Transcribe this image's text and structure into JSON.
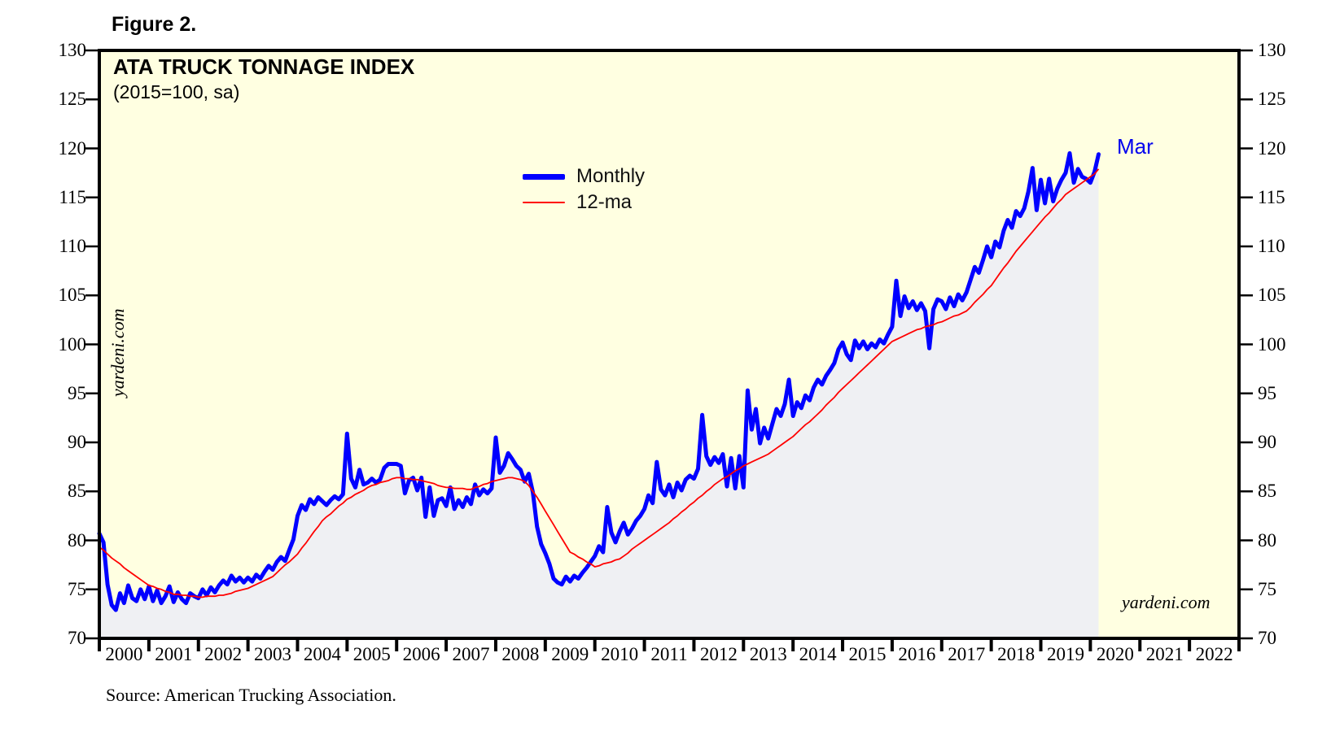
{
  "figure_label": "Figure 2.",
  "title": "ATA TRUCK TONNAGE INDEX",
  "subtitle": "(2015=100, sa)",
  "source_note": "Source: American Trucking Association.",
  "watermark_left": "yardeni.com",
  "watermark_bottom": "yardeni.com",
  "end_label": "Mar",
  "colors": {
    "plot_bg": "#FFFFE1",
    "area_fill": "#EFF0F3",
    "monthly_line": "#0000FF",
    "ma_line": "#FF0000",
    "axis": "#000000",
    "end_label": "#0000EE"
  },
  "chart_data": {
    "type": "line",
    "title": "ATA TRUCK TONNAGE INDEX",
    "subtitle": "(2015=100, sa)",
    "grid": false,
    "legend_position": "top-center",
    "ylim": [
      70,
      130
    ],
    "yticks": [
      130,
      125,
      120,
      115,
      110,
      105,
      100,
      95,
      90,
      85,
      80,
      75,
      70
    ],
    "x_start": {
      "year": 2000,
      "month": 1
    },
    "x_end": {
      "year": 2020,
      "month": 3
    },
    "x_axis_end_year": 2023,
    "year_labels": [
      2000,
      2001,
      2002,
      2003,
      2004,
      2005,
      2006,
      2007,
      2008,
      2009,
      2010,
      2011,
      2012,
      2013,
      2014,
      2015,
      2016,
      2017,
      2018,
      2019,
      2020,
      2021,
      2022
    ],
    "area_under_monthly": true,
    "series": [
      {
        "name": "Monthly",
        "color": "#0000FF",
        "width": 5,
        "values": [
          80.7,
          79.8,
          75.5,
          73.4,
          72.9,
          74.6,
          73.6,
          75.4,
          74.1,
          73.8,
          75.0,
          74.0,
          75.3,
          73.8,
          74.9,
          73.6,
          74.3,
          75.3,
          73.7,
          74.7,
          74.0,
          73.6,
          74.6,
          74.3,
          74.1,
          75.0,
          74.4,
          75.2,
          74.7,
          75.4,
          75.9,
          75.5,
          76.4,
          75.8,
          76.2,
          75.7,
          76.2,
          75.8,
          76.5,
          76.1,
          76.8,
          77.4,
          77.0,
          77.8,
          78.3,
          77.9,
          79.0,
          80.1,
          82.5,
          83.6,
          83.1,
          84.2,
          83.7,
          84.4,
          84.0,
          83.6,
          84.1,
          84.5,
          84.2,
          84.7,
          90.9,
          86.3,
          85.4,
          87.2,
          85.7,
          85.9,
          86.3,
          85.9,
          86.2,
          87.4,
          87.8,
          87.8,
          87.8,
          87.6,
          84.8,
          86.1,
          86.4,
          85.1,
          86.4,
          82.4,
          85.4,
          82.5,
          84.1,
          84.3,
          83.5,
          85.4,
          83.2,
          84.1,
          83.4,
          84.4,
          83.7,
          85.7,
          84.6,
          85.2,
          84.8,
          85.3,
          90.5,
          86.9,
          87.6,
          88.9,
          88.3,
          87.6,
          87.2,
          86.0,
          86.8,
          84.9,
          81.4,
          79.6,
          78.7,
          77.6,
          76.1,
          75.7,
          75.5,
          76.3,
          75.8,
          76.4,
          76.1,
          76.7,
          77.2,
          77.8,
          78.4,
          79.4,
          78.8,
          83.4,
          80.8,
          79.8,
          80.9,
          81.8,
          80.6,
          81.2,
          82.0,
          82.5,
          83.2,
          84.6,
          83.8,
          88.0,
          85.2,
          84.6,
          85.7,
          84.4,
          85.9,
          85.1,
          86.2,
          86.6,
          86.3,
          87.3,
          92.8,
          88.6,
          87.7,
          88.5,
          87.9,
          88.8,
          85.5,
          88.4,
          85.3,
          88.6,
          85.4,
          95.3,
          91.3,
          93.4,
          89.9,
          91.5,
          90.4,
          91.9,
          93.4,
          92.7,
          93.9,
          96.4,
          92.7,
          94.1,
          93.5,
          94.8,
          94.3,
          95.6,
          96.4,
          95.9,
          96.8,
          97.4,
          98.1,
          99.5,
          100.2,
          99.0,
          98.4,
          100.4,
          99.6,
          100.3,
          99.5,
          100.1,
          99.7,
          100.5,
          100.1,
          101.0,
          101.8,
          106.5,
          102.9,
          104.9,
          103.7,
          104.4,
          103.5,
          104.2,
          103.4,
          99.6,
          103.6,
          104.6,
          104.4,
          103.6,
          104.8,
          103.9,
          105.1,
          104.5,
          105.3,
          106.6,
          107.9,
          107.3,
          108.6,
          110.0,
          108.9,
          110.5,
          109.9,
          111.6,
          112.7,
          111.9,
          113.6,
          113.1,
          113.9,
          115.6,
          118.0,
          113.7,
          116.8,
          114.4,
          116.9,
          114.6,
          115.9,
          116.8,
          117.5,
          119.5,
          116.5,
          117.9,
          117.1,
          116.9,
          116.5,
          117.6,
          119.4
        ]
      },
      {
        "name": "12-ma",
        "color": "#FF0000",
        "width": 1.8,
        "values": [
          79.3,
          79.0,
          78.6,
          78.2,
          77.9,
          77.6,
          77.2,
          76.9,
          76.6,
          76.3,
          76.0,
          75.7,
          75.4,
          75.3,
          75.1,
          75.0,
          74.8,
          74.7,
          74.5,
          74.5,
          74.4,
          74.4,
          74.3,
          74.3,
          74.2,
          74.2,
          74.3,
          74.3,
          74.3,
          74.4,
          74.4,
          74.5,
          74.6,
          74.8,
          74.9,
          75.0,
          75.1,
          75.3,
          75.5,
          75.7,
          75.9,
          76.1,
          76.3,
          76.7,
          77.1,
          77.5,
          77.8,
          78.2,
          78.6,
          79.2,
          79.7,
          80.3,
          80.9,
          81.4,
          82.0,
          82.4,
          82.7,
          83.1,
          83.5,
          83.8,
          84.2,
          84.4,
          84.7,
          84.9,
          85.1,
          85.4,
          85.6,
          85.7,
          85.9,
          86.0,
          86.1,
          86.3,
          86.4,
          86.4,
          86.3,
          86.3,
          86.2,
          86.2,
          86.1,
          86.0,
          85.9,
          85.8,
          85.6,
          85.5,
          85.4,
          85.4,
          85.3,
          85.3,
          85.3,
          85.2,
          85.2,
          85.4,
          85.5,
          85.7,
          85.8,
          86.0,
          86.1,
          86.2,
          86.3,
          86.4,
          86.4,
          86.3,
          86.2,
          86.0,
          85.6,
          85.0,
          84.4,
          83.7,
          83.0,
          82.3,
          81.6,
          80.9,
          80.2,
          79.5,
          78.8,
          78.6,
          78.3,
          78.1,
          77.8,
          77.6,
          77.3,
          77.4,
          77.6,
          77.7,
          77.8,
          78.0,
          78.1,
          78.4,
          78.7,
          79.1,
          79.4,
          79.7,
          80.0,
          80.3,
          80.6,
          80.9,
          81.2,
          81.5,
          81.8,
          82.2,
          82.5,
          82.9,
          83.2,
          83.6,
          83.9,
          84.3,
          84.6,
          85.0,
          85.3,
          85.7,
          86.0,
          86.3,
          86.5,
          86.8,
          87.1,
          87.3,
          87.6,
          87.8,
          88.0,
          88.2,
          88.4,
          88.6,
          88.8,
          89.1,
          89.4,
          89.7,
          90.0,
          90.3,
          90.6,
          91.0,
          91.4,
          91.8,
          92.1,
          92.5,
          92.9,
          93.3,
          93.8,
          94.2,
          94.6,
          95.1,
          95.5,
          95.9,
          96.3,
          96.7,
          97.1,
          97.5,
          97.9,
          98.3,
          98.7,
          99.1,
          99.5,
          99.9,
          100.3,
          100.5,
          100.7,
          100.9,
          101.1,
          101.3,
          101.5,
          101.6,
          101.8,
          101.9,
          102.0,
          102.2,
          102.3,
          102.5,
          102.7,
          102.9,
          103.0,
          103.2,
          103.4,
          103.8,
          104.3,
          104.7,
          105.1,
          105.6,
          106.0,
          106.6,
          107.2,
          107.8,
          108.3,
          108.9,
          109.5,
          110.0,
          110.5,
          111.0,
          111.5,
          112.0,
          112.5,
          113.0,
          113.4,
          113.9,
          114.4,
          114.8,
          115.3,
          115.6,
          115.9,
          116.2,
          116.5,
          116.8,
          117.1,
          117.4,
          117.9
        ]
      }
    ]
  }
}
